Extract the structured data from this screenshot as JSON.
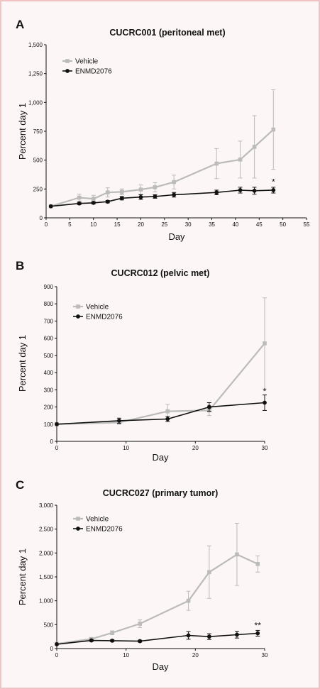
{
  "colors": {
    "background": "#fdf6f6",
    "vehicle": "#bbbbbb",
    "enmd": "#111111",
    "axis": "#111111"
  },
  "chart_data": [
    {
      "id": "A",
      "type": "line",
      "panel_letter": "A",
      "title": "CUCRC001 (peritoneal met)",
      "xlabel": "Day",
      "ylabel": "Percent day 1",
      "xlim": [
        0,
        55
      ],
      "ylim": [
        0,
        1500
      ],
      "x_ticks": [
        "0",
        "5",
        "10",
        "15",
        "20",
        "25",
        "30",
        "35",
        "40",
        "45",
        "50",
        "55"
      ],
      "y_ticks": [
        "0",
        "250",
        "500",
        "750",
        "1,000",
        "1,250",
        "1,500"
      ],
      "legend_position": "top-left",
      "series": [
        {
          "name": "Vehicle",
          "marker": "square",
          "x": [
            1,
            7,
            10,
            13,
            16,
            20,
            23,
            27,
            36,
            41,
            44,
            48
          ],
          "y": [
            100,
            175,
            165,
            220,
            225,
            245,
            265,
            310,
            470,
            505,
            615,
            765
          ],
          "err": [
            0,
            30,
            30,
            40,
            25,
            40,
            40,
            60,
            130,
            160,
            270,
            345
          ]
        },
        {
          "name": "ENMD2076",
          "marker": "circle",
          "x": [
            1,
            7,
            10,
            13,
            16,
            20,
            23,
            27,
            36,
            41,
            44,
            48
          ],
          "y": [
            100,
            125,
            130,
            140,
            170,
            180,
            185,
            200,
            220,
            240,
            235,
            240
          ],
          "err": [
            0,
            10,
            10,
            10,
            15,
            20,
            15,
            20,
            20,
            25,
            30,
            25
          ]
        }
      ],
      "annotations": [
        {
          "text": "*",
          "x": 48,
          "y": 285
        }
      ]
    },
    {
      "id": "B",
      "type": "line",
      "panel_letter": "B",
      "title": "CUCRC012 (pelvic met)",
      "xlabel": "Day",
      "ylabel": "Percent day 1",
      "xlim": [
        0,
        30
      ],
      "ylim": [
        0,
        900
      ],
      "x_ticks": [
        "0",
        "10",
        "20",
        "30"
      ],
      "y_ticks": [
        "0",
        "100",
        "200",
        "300",
        "400",
        "500",
        "600",
        "700",
        "800",
        "900"
      ],
      "legend_position": "top-left",
      "series": [
        {
          "name": "Vehicle",
          "marker": "square",
          "x": [
            0,
            9,
            16,
            22,
            30
          ],
          "y": [
            100,
            110,
            175,
            180,
            570
          ],
          "err": [
            0,
            10,
            40,
            30,
            265
          ]
        },
        {
          "name": "ENMD2076",
          "marker": "circle",
          "x": [
            0,
            9,
            16,
            22,
            30
          ],
          "y": [
            100,
            120,
            130,
            200,
            225
          ],
          "err": [
            0,
            15,
            15,
            25,
            45
          ]
        }
      ],
      "annotations": [
        {
          "text": "*",
          "x": 30,
          "y": 275
        }
      ]
    },
    {
      "id": "C",
      "type": "line",
      "panel_letter": "C",
      "title": "CUCRC027 (primary tumor)",
      "xlabel": "Day",
      "ylabel": "Percent day 1",
      "xlim": [
        0,
        30
      ],
      "ylim": [
        0,
        3000
      ],
      "x_ticks": [
        "0",
        "10",
        "20",
        "30"
      ],
      "y_ticks": [
        "0",
        "500",
        "1,000",
        "1,500",
        "2,000",
        "2,500",
        "3,000"
      ],
      "legend_position": "top-left",
      "series": [
        {
          "name": "Vehicle",
          "marker": "square",
          "x": [
            0,
            5,
            8,
            12,
            19,
            22,
            26,
            29
          ],
          "y": [
            100,
            200,
            330,
            520,
            1000,
            1600,
            1970,
            1770
          ],
          "err": [
            0,
            20,
            40,
            80,
            200,
            550,
            650,
            170
          ]
        },
        {
          "name": "ENMD2076",
          "marker": "circle",
          "x": [
            0,
            5,
            8,
            12,
            19,
            22,
            26,
            29
          ],
          "y": [
            90,
            170,
            165,
            155,
            275,
            250,
            290,
            320
          ],
          "err": [
            0,
            20,
            20,
            20,
            80,
            60,
            70,
            60
          ]
        }
      ],
      "annotations": [
        {
          "text": "**",
          "x": 29,
          "y": 420
        }
      ]
    }
  ]
}
